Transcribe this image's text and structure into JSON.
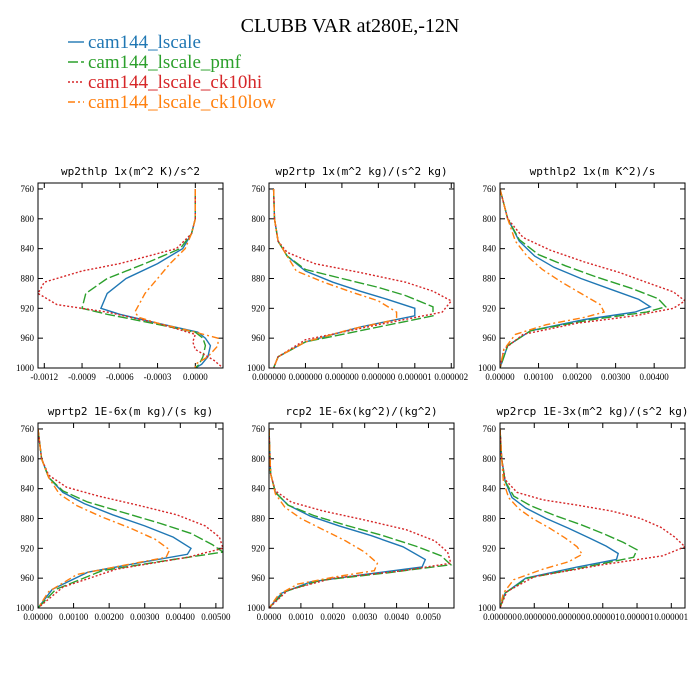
{
  "title": "CLUBB VAR at280E,-12N",
  "legend": [
    {
      "name": "cam144_lscale",
      "color": "#1f77b4",
      "dash": "solid"
    },
    {
      "name": "cam144_lscale_pmf",
      "color": "#2ca02c",
      "dash": "longdash"
    },
    {
      "name": "cam144_lscale_ck10hi",
      "color": "#d62728",
      "dash": "dot"
    },
    {
      "name": "cam144_lscale_ck10low",
      "color": "#ff7f0e",
      "dash": "dashdot"
    }
  ],
  "chart_data": [
    {
      "type": "line",
      "title": "wp2thlp  1x(m^2 K)/s^2",
      "xlim": [
        -0.00125,
        0.00022
      ],
      "ylim": [
        1000,
        752
      ],
      "xticks": [
        "-0.0012",
        "-0.0009",
        "-0.0006",
        "-0.0003",
        "0.0000"
      ],
      "xtick_values": [
        -0.0012,
        -0.0009,
        -0.0006,
        -0.0003,
        0.0
      ],
      "yticks": [
        760,
        800,
        840,
        880,
        920,
        960,
        1000
      ],
      "series": [
        {
          "name": "cam144_lscale",
          "x": [
            0.0,
            0.0,
            -3e-05,
            -0.0001,
            -0.0003,
            -0.00055,
            -0.0007,
            -0.00075,
            -0.0006,
            -0.0003,
            2e-05,
            8e-05,
            0.00012,
            0.0001,
            5e-05,
            0.0
          ],
          "y": [
            760,
            800,
            820,
            840,
            860,
            880,
            900,
            920,
            928,
            940,
            952,
            960,
            970,
            985,
            995,
            1000
          ]
        },
        {
          "name": "cam144_lscale_pmf",
          "x": [
            0.0,
            0.0,
            -3e-05,
            -0.00012,
            -0.0004,
            -0.0007,
            -0.00087,
            -0.0009,
            -0.0007,
            -0.0004,
            0.0,
            6e-05,
            8e-05,
            6e-05,
            3e-05,
            0.0
          ],
          "y": [
            760,
            800,
            820,
            840,
            860,
            880,
            900,
            920,
            928,
            938,
            952,
            960,
            970,
            985,
            995,
            1000
          ]
        },
        {
          "name": "cam144_lscale_ck10hi",
          "x": [
            0.0,
            0.0,
            -3e-05,
            -0.00015,
            -0.0006,
            -0.0009,
            -0.0012,
            -0.00125,
            -0.0011,
            -0.0007,
            -0.0003,
            0.0,
            -2e-05,
            0.0,
            0.00015,
            0.00022
          ],
          "y": [
            760,
            800,
            820,
            840,
            860,
            870,
            885,
            900,
            915,
            925,
            940,
            955,
            965,
            975,
            990,
            1000
          ]
        },
        {
          "name": "cam144_lscale_ck10low",
          "x": [
            0.0,
            0.0,
            -3e-05,
            -8e-05,
            -0.0002,
            -0.0003,
            -0.0004,
            -0.00048,
            -0.00045,
            -0.0003,
            0.0,
            0.00018,
            0.00018,
            0.0001,
            0.0,
            0.0
          ],
          "y": [
            760,
            800,
            820,
            840,
            860,
            880,
            900,
            925,
            932,
            940,
            952,
            960,
            970,
            985,
            995,
            1000
          ]
        }
      ]
    },
    {
      "type": "line",
      "title": "wp2rtp  1x(m^2 kg)/(s^2 kg)",
      "xlim": [
        0,
        2.03e-06
      ],
      "ylim": [
        1000,
        752
      ],
      "xticks": [
        "0.000000",
        "0.000000",
        "0.000000",
        "0.000000",
        "0.000001",
        "0.000002"
      ],
      "xtick_values": [
        0,
        4e-07,
        8e-07,
        1.2e-06,
        1.6e-06,
        2e-06
      ],
      "yticks": [
        760,
        800,
        840,
        880,
        920,
        960,
        1000
      ],
      "series": [
        {
          "name": "cam144_lscale",
          "x": [
            5e-08,
            6e-08,
            1e-07,
            2e-07,
            4e-07,
            7e-07,
            1e-06,
            1.3e-06,
            1.6e-06,
            1.6e-06,
            1e-06,
            4e-07,
            1e-07,
            5e-08
          ],
          "y": [
            760,
            800,
            830,
            850,
            870,
            885,
            897,
            908,
            920,
            930,
            945,
            965,
            985,
            1000
          ]
        },
        {
          "name": "cam144_lscale_pmf",
          "x": [
            5e-08,
            6e-08,
            1e-07,
            2e-07,
            4e-07,
            8e-07,
            1.2e-06,
            1.5e-06,
            1.8e-06,
            1.8e-06,
            1.2e-06,
            4e-07,
            1e-07,
            5e-08
          ],
          "y": [
            760,
            800,
            830,
            850,
            868,
            880,
            892,
            903,
            918,
            930,
            945,
            965,
            985,
            1000
          ]
        },
        {
          "name": "cam144_lscale_ck10hi",
          "x": [
            5e-08,
            6e-08,
            1e-07,
            2e-07,
            5e-07,
            1e-06,
            1.5e-06,
            1.8e-06,
            2e-06,
            1.9e-06,
            1.2e-06,
            4e-07,
            1e-07,
            5e-08
          ],
          "y": [
            760,
            800,
            830,
            845,
            860,
            872,
            885,
            897,
            910,
            925,
            942,
            962,
            985,
            1000
          ]
        },
        {
          "name": "cam144_lscale_ck10low",
          "x": [
            5e-08,
            6e-08,
            1e-07,
            2e-07,
            3e-07,
            6e-07,
            9e-07,
            1.2e-06,
            1.4e-06,
            1.4e-06,
            9e-07,
            4e-07,
            1e-07,
            5e-08
          ],
          "y": [
            760,
            800,
            830,
            850,
            870,
            885,
            898,
            910,
            925,
            935,
            948,
            965,
            985,
            1000
          ]
        }
      ]
    },
    {
      "type": "line",
      "title": "wpthlp2  1x(m K^2)/s",
      "xlim": [
        0,
        0.0048
      ],
      "ylim": [
        1000,
        752
      ],
      "xticks": [
        "0.00000",
        "0.00100",
        "0.00200",
        "0.00300",
        "0.00400"
      ],
      "xtick_values": [
        0,
        0.001,
        0.002,
        0.003,
        0.004
      ],
      "yticks": [
        760,
        800,
        840,
        880,
        920,
        960,
        1000
      ],
      "series": [
        {
          "name": "cam144_lscale",
          "x": [
            0.0,
            0.0002,
            0.0005,
            0.0009,
            0.0014,
            0.0021,
            0.0029,
            0.0036,
            0.0039,
            0.0035,
            0.0022,
            0.0008,
            0.0002,
            0.0
          ],
          "y": [
            760,
            800,
            830,
            850,
            865,
            880,
            895,
            908,
            918,
            925,
            935,
            950,
            970,
            1000
          ]
        },
        {
          "name": "cam144_lscale_pmf",
          "x": [
            0.0,
            0.0002,
            0.0005,
            0.001,
            0.0017,
            0.0025,
            0.0034,
            0.0041,
            0.0043,
            0.0038,
            0.0024,
            0.0008,
            0.0002,
            0.0
          ],
          "y": [
            760,
            800,
            828,
            848,
            863,
            878,
            893,
            907,
            918,
            925,
            935,
            950,
            970,
            1000
          ]
        },
        {
          "name": "cam144_lscale_ck10hi",
          "x": [
            0.0,
            0.0002,
            0.0006,
            0.0013,
            0.0022,
            0.0031,
            0.0039,
            0.0045,
            0.0048,
            0.0045,
            0.0035,
            0.002,
            0.0006,
            0.0001,
            0.0
          ],
          "y": [
            760,
            800,
            825,
            842,
            858,
            872,
            887,
            898,
            910,
            920,
            930,
            940,
            955,
            975,
            1000
          ]
        },
        {
          "name": "cam144_lscale_ck10low",
          "x": [
            0.0,
            0.0002,
            0.0004,
            0.0007,
            0.0011,
            0.0016,
            0.0021,
            0.0026,
            0.0027,
            0.0022,
            0.0012,
            0.0004,
            0.0001,
            0.0
          ],
          "y": [
            760,
            800,
            830,
            850,
            868,
            885,
            900,
            915,
            925,
            932,
            942,
            955,
            975,
            1000
          ]
        }
      ]
    },
    {
      "type": "line",
      "title": "wprtp2  1E-6x(m kg)/(s kg)",
      "xlim": [
        0,
        0.0052
      ],
      "ylim": [
        1000,
        752
      ],
      "xticks": [
        "0.00000",
        "0.00100",
        "0.00200",
        "0.00300",
        "0.00400",
        "0.00500"
      ],
      "xtick_values": [
        0,
        0.001,
        0.002,
        0.003,
        0.004,
        0.005
      ],
      "yticks": [
        760,
        800,
        840,
        880,
        920,
        960,
        1000
      ],
      "series": [
        {
          "name": "cam144_lscale",
          "x": [
            0.0,
            0.0001,
            0.0003,
            0.0007,
            0.0013,
            0.0021,
            0.003,
            0.0038,
            0.0043,
            0.0042,
            0.003,
            0.0014,
            0.0004,
            0.0
          ],
          "y": [
            760,
            800,
            825,
            845,
            860,
            875,
            890,
            905,
            920,
            928,
            938,
            952,
            975,
            1000
          ]
        },
        {
          "name": "cam144_lscale_pmf",
          "x": [
            0.0,
            0.0001,
            0.0003,
            0.0007,
            0.0014,
            0.0024,
            0.0034,
            0.0043,
            0.0049,
            0.0052,
            0.0038,
            0.0018,
            0.0005,
            0.0
          ],
          "y": [
            760,
            800,
            825,
            843,
            858,
            872,
            886,
            900,
            915,
            925,
            935,
            950,
            975,
            1000
          ]
        },
        {
          "name": "cam144_lscale_ck10hi",
          "x": [
            0.0,
            0.0001,
            0.0003,
            0.0008,
            0.0017,
            0.0028,
            0.0039,
            0.0047,
            0.0051,
            0.0052,
            0.0042,
            0.0022,
            0.0007,
            0.0
          ],
          "y": [
            760,
            800,
            822,
            838,
            850,
            862,
            875,
            890,
            905,
            920,
            932,
            948,
            972,
            1000
          ]
        },
        {
          "name": "cam144_lscale_ck10low",
          "x": [
            0.0,
            0.0001,
            0.0003,
            0.0006,
            0.0011,
            0.0018,
            0.0026,
            0.0033,
            0.0037,
            0.0036,
            0.0025,
            0.0011,
            0.0003,
            0.0
          ],
          "y": [
            760,
            800,
            825,
            847,
            863,
            878,
            893,
            908,
            922,
            932,
            942,
            955,
            978,
            1000
          ]
        }
      ]
    },
    {
      "type": "line",
      "title": "rcp2  1E-6x(kg^2)/(kg^2)",
      "xlim": [
        0,
        0.0058
      ],
      "ylim": [
        1000,
        752
      ],
      "xticks": [
        "0.0000",
        "0.0010",
        "0.0020",
        "0.0030",
        "0.0040",
        "0.0050"
      ],
      "xtick_values": [
        0,
        0.001,
        0.002,
        0.003,
        0.004,
        0.005
      ],
      "yticks": [
        760,
        800,
        840,
        880,
        920,
        960,
        1000
      ],
      "series": [
        {
          "name": "cam144_lscale",
          "x": [
            0.0,
            5e-05,
            0.0002,
            0.0006,
            0.0013,
            0.0022,
            0.0032,
            0.0042,
            0.0049,
            0.0048,
            0.003,
            0.0013,
            0.0004,
            0.0
          ],
          "y": [
            760,
            820,
            845,
            862,
            877,
            890,
            903,
            918,
            935,
            945,
            955,
            965,
            980,
            1000
          ]
        },
        {
          "name": "cam144_lscale_pmf",
          "x": [
            0.0,
            5e-05,
            0.0002,
            0.0006,
            0.0014,
            0.0024,
            0.0035,
            0.0046,
            0.0054,
            0.0057,
            0.0037,
            0.0016,
            0.0005,
            0.0
          ],
          "y": [
            760,
            820,
            845,
            862,
            876,
            889,
            902,
            917,
            930,
            942,
            953,
            963,
            978,
            1000
          ]
        },
        {
          "name": "cam144_lscale_ck10hi",
          "x": [
            0.0,
            5e-05,
            0.0002,
            0.0007,
            0.0017,
            0.003,
            0.0043,
            0.0052,
            0.0056,
            0.0057,
            0.0042,
            0.002,
            0.0006,
            0.0
          ],
          "y": [
            760,
            820,
            843,
            858,
            870,
            882,
            895,
            910,
            925,
            940,
            950,
            960,
            976,
            1000
          ]
        },
        {
          "name": "cam144_lscale_ck10low",
          "x": [
            0.0,
            5e-05,
            0.0002,
            0.0005,
            0.001,
            0.0017,
            0.0024,
            0.003,
            0.0034,
            0.0033,
            0.0021,
            0.0009,
            0.0003,
            0.0
          ],
          "y": [
            760,
            820,
            847,
            865,
            880,
            895,
            910,
            925,
            940,
            950,
            958,
            968,
            982,
            1000
          ]
        }
      ]
    },
    {
      "type": "line",
      "title": "wp2rcp  1E-3x(m^2 kg)/(s^2 kg)",
      "xlim": [
        0,
        1.08e-06
      ],
      "ylim": [
        1000,
        752
      ],
      "xticks": [
        "0.000000",
        "0.000000",
        "0.000000",
        "0.000001",
        "0.000001",
        "0.000001"
      ],
      "xtick_values": [
        0,
        2e-07,
        4e-07,
        6e-07,
        8e-07,
        1e-06
      ],
      "yticks": [
        760,
        800,
        840,
        880,
        920,
        960,
        1000
      ],
      "series": [
        {
          "name": "cam144_lscale",
          "x": [
            0.0,
            1e-08,
            3e-08,
            7e-08,
            1.5e-07,
            2.7e-07,
            4e-07,
            5.2e-07,
            6.2e-07,
            6.9e-07,
            6.8e-07,
            4.5e-07,
            1.5e-07,
            3e-08,
            0.0
          ],
          "y": [
            760,
            800,
            830,
            852,
            866,
            880,
            893,
            906,
            917,
            927,
            935,
            945,
            960,
            980,
            1000
          ]
        },
        {
          "name": "cam144_lscale_pmf",
          "x": [
            0.0,
            1e-08,
            3e-08,
            8e-08,
            1.8e-07,
            3.2e-07,
            4.7e-07,
            6e-07,
            7.2e-07,
            8e-07,
            7.8e-07,
            5e-07,
            1.6e-07,
            3e-08,
            0.0
          ],
          "y": [
            760,
            800,
            830,
            850,
            863,
            876,
            888,
            900,
            912,
            922,
            932,
            945,
            960,
            980,
            1000
          ]
        },
        {
          "name": "cam144_lscale_ck10hi",
          "x": [
            0.0,
            1e-08,
            3e-08,
            1e-07,
            2.5e-07,
            4.5e-07,
            6.5e-07,
            8.2e-07,
            9.4e-07,
            1.02e-06,
            1.08e-06,
            9.5e-07,
            6e-07,
            2e-07,
            4e-08,
            0.0
          ],
          "y": [
            760,
            800,
            828,
            845,
            855,
            862,
            870,
            880,
            892,
            905,
            918,
            930,
            942,
            958,
            978,
            1000
          ]
        },
        {
          "name": "cam144_lscale_ck10low",
          "x": [
            0.0,
            1e-08,
            2e-08,
            5e-08,
            1.1e-07,
            1.9e-07,
            2.9e-07,
            3.8e-07,
            4.5e-07,
            4.8e-07,
            4e-07,
            2.5e-07,
            8e-08,
            2e-08,
            0.0
          ],
          "y": [
            760,
            800,
            830,
            852,
            867,
            880,
            893,
            906,
            918,
            928,
            938,
            948,
            962,
            980,
            1000
          ]
        }
      ]
    }
  ]
}
